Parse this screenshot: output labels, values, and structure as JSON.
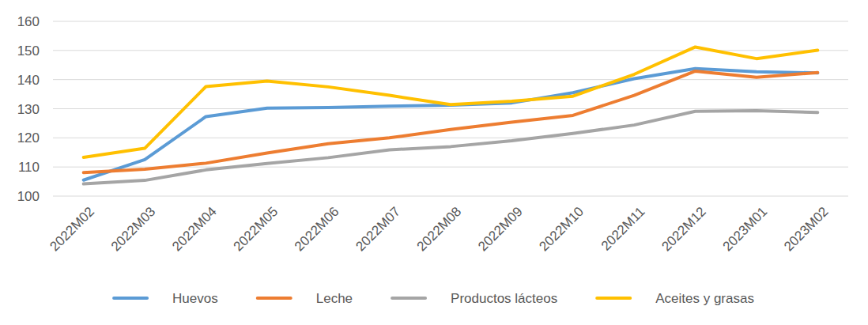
{
  "chart_data": {
    "type": "line",
    "categories": [
      "2022M02",
      "2022M03",
      "2022M04",
      "2022M05",
      "2022M06",
      "2022M07",
      "2022M08",
      "2022M09",
      "2022M10",
      "2022M11",
      "2022M12",
      "2023M01",
      "2023M02"
    ],
    "series": [
      {
        "name": "Huevos",
        "color": "#5b9bd5",
        "values": [
          105.5,
          112.5,
          127.3,
          130.2,
          130.4,
          130.9,
          131.2,
          132.0,
          135.5,
          140.3,
          143.8,
          142.7,
          142.3
        ]
      },
      {
        "name": "Leche",
        "color": "#ed7d31",
        "values": [
          108.1,
          109.2,
          111.3,
          114.8,
          118.0,
          120.0,
          122.9,
          125.4,
          127.7,
          134.6,
          142.9,
          140.8,
          142.4
        ]
      },
      {
        "name": "Productos lácteos",
        "color": "#a5a5a5",
        "values": [
          104.2,
          105.4,
          109.0,
          111.2,
          113.2,
          115.9,
          117.0,
          119.0,
          121.5,
          124.4,
          129.1,
          129.3,
          128.7
        ]
      },
      {
        "name": "Aceites y grasas",
        "color": "#ffc000",
        "values": [
          113.3,
          116.4,
          137.6,
          139.5,
          137.5,
          134.6,
          131.4,
          132.6,
          134.3,
          141.8,
          151.2,
          147.2,
          150.1
        ]
      }
    ],
    "ylim": [
      100,
      160
    ],
    "yticks": [
      100,
      110,
      120,
      130,
      140,
      150,
      160
    ],
    "grid": true,
    "legend": "bottom"
  }
}
